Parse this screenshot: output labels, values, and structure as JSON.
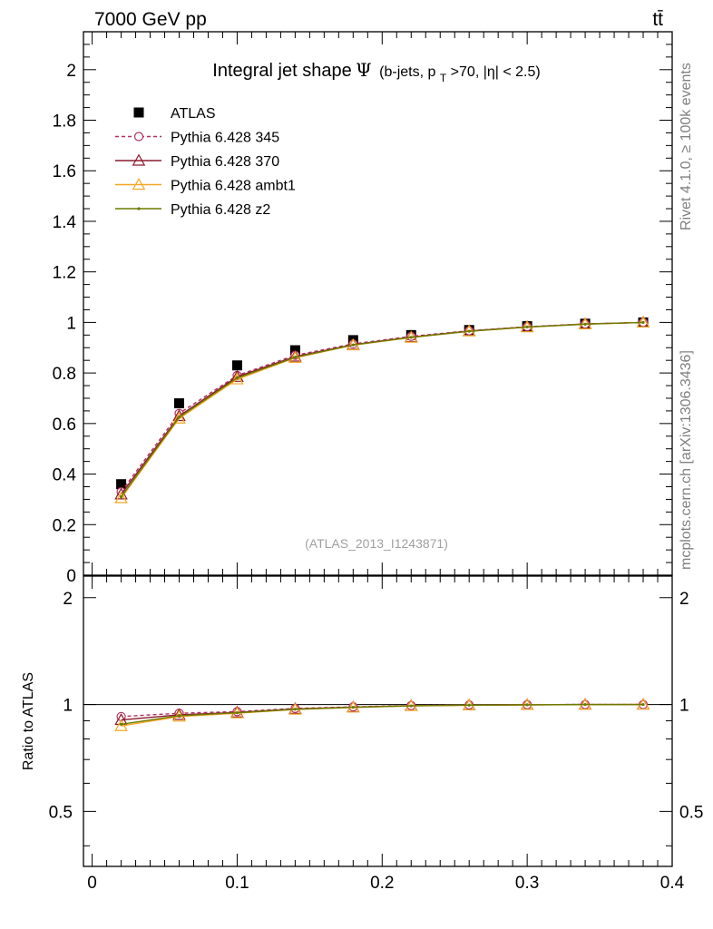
{
  "header": {
    "energy_label": "7000 GeV pp",
    "process_label": "tt̄"
  },
  "side_labels": {
    "rivet": "Rivet 4.1.0, ≥ 100k events",
    "mcplots": "mcplots.cern.ch [arXiv:1306.3436]"
  },
  "chart_data": [
    {
      "type": "line",
      "title_main": "Integral jet shape",
      "title_symbol": "Ψ",
      "title_cond_a": "(b-jets, p",
      "title_cond_sub": "T",
      "title_cond_b": ">70, |η| < 2.5)",
      "watermark": "(ATLAS_2013_I1243871)",
      "x": [
        0.02,
        0.06,
        0.1,
        0.14,
        0.18,
        0.22,
        0.26,
        0.3,
        0.34,
        0.38
      ],
      "xlim": [
        -0.006,
        0.4
      ],
      "ylim": [
        0,
        2.15
      ],
      "y_ticks": [
        0,
        0.2,
        0.4,
        0.6,
        0.8,
        1,
        1.2,
        1.4,
        1.6,
        1.8,
        2
      ],
      "y_tick_labels": [
        "0",
        "0.2",
        "0.4",
        "0.6",
        "0.8",
        "1",
        "1.2",
        "1.4",
        "1.6",
        "1.8",
        "2"
      ],
      "series": [
        {
          "name": "ATLAS",
          "marker": "square",
          "color": "#000000",
          "values": [
            0.36,
            0.68,
            0.83,
            0.89,
            0.93,
            0.95,
            0.97,
            0.985,
            0.995,
            1.0
          ]
        },
        {
          "name": "Pythia 6.428 345",
          "marker": "circle",
          "color": "#b03060",
          "dashed": true,
          "values": [
            0.33,
            0.64,
            0.79,
            0.87,
            0.915,
            0.945,
            0.967,
            0.983,
            0.994,
            1.0
          ]
        },
        {
          "name": "Pythia 6.428 370",
          "marker": "triangle",
          "color": "#8b1a2b",
          "values": [
            0.32,
            0.63,
            0.785,
            0.865,
            0.912,
            0.942,
            0.966,
            0.982,
            0.994,
            1.0
          ]
        },
        {
          "name": "Pythia 6.428 ambt1",
          "marker": "triangle",
          "color": "#f5a623",
          "values": [
            0.305,
            0.62,
            0.775,
            0.86,
            0.91,
            0.94,
            0.965,
            0.981,
            0.993,
            1.0
          ]
        },
        {
          "name": "Pythia 6.428 z2",
          "marker": "dot",
          "color": "#6b7a00",
          "values": [
            0.31,
            0.625,
            0.78,
            0.862,
            0.911,
            0.941,
            0.965,
            0.982,
            0.993,
            1.0
          ]
        }
      ]
    },
    {
      "type": "line",
      "ylabel": "Ratio to ATLAS",
      "x": [
        0.02,
        0.06,
        0.1,
        0.14,
        0.18,
        0.22,
        0.26,
        0.3,
        0.34,
        0.38
      ],
      "xlim": [
        -0.006,
        0.4
      ],
      "ylim": [
        0.35,
        2.3
      ],
      "y_ticks": [
        0.5,
        1,
        2
      ],
      "y_tick_labels": [
        "0.5",
        "1",
        "2"
      ],
      "x_ticks": [
        0,
        0.1,
        0.2,
        0.3,
        0.4
      ],
      "x_tick_labels": [
        "0",
        "0.1",
        "0.2",
        "0.3",
        "0.4"
      ],
      "series": [
        {
          "name": "Pythia 6.428 345",
          "marker": "circle",
          "color": "#b03060",
          "dashed": true,
          "values": [
            0.925,
            0.945,
            0.955,
            0.975,
            0.985,
            0.993,
            0.997,
            0.999,
            1.0,
            1.0
          ]
        },
        {
          "name": "Pythia 6.428 370",
          "marker": "triangle",
          "color": "#8b1a2b",
          "values": [
            0.905,
            0.935,
            0.95,
            0.972,
            0.983,
            0.992,
            0.996,
            0.998,
            1.0,
            1.0
          ]
        },
        {
          "name": "Pythia 6.428 ambt1",
          "marker": "triangle",
          "color": "#f5a623",
          "values": [
            0.87,
            0.925,
            0.945,
            0.968,
            0.981,
            0.991,
            0.995,
            0.998,
            0.999,
            1.0
          ]
        },
        {
          "name": "Pythia 6.428 z2",
          "marker": "dot",
          "color": "#6b7a00",
          "values": [
            0.88,
            0.93,
            0.948,
            0.97,
            0.982,
            0.991,
            0.996,
            0.998,
            1.0,
            1.0
          ]
        }
      ]
    }
  ]
}
